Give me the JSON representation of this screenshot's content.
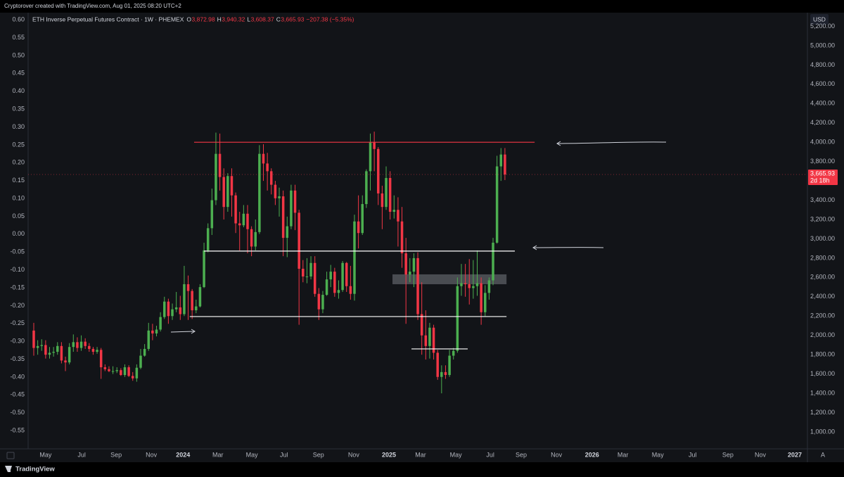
{
  "attribution": "Cryptorover created with TradingView.com, Aug 01, 2025 08:20 UTC+2",
  "footer": "TradingView",
  "chart_data": {
    "type": "candlestick",
    "title": "ETH Inverse Perpetual Futures Contract · 1W · PHEMEX",
    "ohlc_legend": [
      {
        "label": "O",
        "value": "3,872.98"
      },
      {
        "label": "H",
        "value": "3,940.32"
      },
      {
        "label": "L",
        "value": "3,608.37"
      },
      {
        "label": "C",
        "value": "3,665.93"
      }
    ],
    "change": "−207.38 (−5.35%)",
    "currency": "USD",
    "scale_mode": "A",
    "price_tag": {
      "price": "3,665.93",
      "countdown": "2d 18h"
    },
    "up_color": "#4caf50",
    "down_color": "#f23645",
    "x": [
      0,
      1,
      2,
      3,
      4,
      5,
      6,
      7,
      8,
      9,
      10,
      11,
      12,
      13,
      14,
      15,
      16,
      17,
      18,
      19,
      20,
      21,
      22,
      23,
      24,
      25,
      26,
      27,
      28,
      29,
      30,
      31,
      32,
      33,
      34,
      35,
      36,
      37,
      38,
      39,
      40,
      41,
      42,
      43,
      44,
      45,
      46,
      47,
      48,
      49,
      50,
      51,
      52,
      53,
      54,
      55,
      56,
      57,
      58,
      59,
      60,
      61,
      62,
      63,
      64,
      65,
      66,
      67,
      68,
      69,
      70,
      71,
      72,
      73,
      74,
      75,
      76,
      77,
      78,
      79,
      80,
      81,
      82,
      83,
      84,
      85,
      86,
      87,
      88,
      89,
      90,
      91,
      92,
      93,
      94,
      95,
      96,
      97,
      98,
      99,
      100,
      101,
      102,
      103,
      104,
      105,
      106,
      107,
      108,
      109,
      110,
      111,
      112,
      113,
      114,
      115,
      116,
      117,
      118,
      119
    ],
    "open": [
      2050,
      1870,
      1890,
      1900,
      1800,
      1820,
      1830,
      1890,
      1740,
      1720,
      1880,
      1930,
      1870,
      1935,
      1890,
      1860,
      1830,
      1850,
      1670,
      1650,
      1630,
      1630,
      1640,
      1590,
      1670,
      1580,
      1555,
      1665,
      1790,
      1860,
      2050,
      2020,
      2060,
      2190,
      2350,
      2200,
      2270,
      2290,
      2220,
      2530,
      2460,
      2260,
      2300,
      2500,
      2880,
      3110,
      3400,
      3880,
      3640,
      3330,
      3650,
      3450,
      3160,
      3140,
      3260,
      3100,
      2920,
      3070,
      3880,
      3780,
      3700,
      3560,
      3420,
      3440,
      3010,
      3130,
      3500,
      3270,
      2690,
      2610,
      2610,
      2750,
      2430,
      2270,
      2420,
      2580,
      2660,
      2440,
      2470,
      2750,
      2510,
      2430,
      3180,
      3060,
      3360,
      3700,
      4000,
      3930,
      3470,
      3330,
      3630,
      3280,
      3300,
      3180,
      2850,
      2630,
      2660,
      2800,
      2220,
      2000,
      1890,
      2080,
      1820,
      1570,
      1620,
      1590,
      1790,
      1840,
      2510,
      2540,
      2530,
      2490,
      2510,
      2540,
      2240,
      2440,
      2570,
      2960,
      3750,
      3872.98
    ],
    "high": [
      2130,
      1950,
      1960,
      1950,
      1880,
      1880,
      1930,
      1930,
      1780,
      1920,
      2010,
      1980,
      2000,
      1970,
      1920,
      1880,
      1880,
      1870,
      1700,
      1680,
      1680,
      1670,
      1660,
      1700,
      1690,
      1620,
      1700,
      1860,
      1910,
      2130,
      2120,
      2100,
      2240,
      2400,
      2380,
      2330,
      2450,
      2410,
      2720,
      2620,
      2480,
      2370,
      2530,
      2960,
      3160,
      3520,
      4100,
      4090,
      3730,
      3680,
      3730,
      3480,
      3280,
      3350,
      3350,
      3130,
      3200,
      3970,
      3980,
      3890,
      3730,
      3600,
      3530,
      3500,
      3230,
      3560,
      3560,
      3300,
      2780,
      2800,
      2820,
      2820,
      2490,
      2460,
      2660,
      2730,
      2700,
      2570,
      2770,
      2760,
      2720,
      3250,
      3450,
      3450,
      3720,
      4090,
      4110,
      3950,
      3550,
      3750,
      3700,
      3450,
      3430,
      3330,
      3010,
      2800,
      2850,
      2860,
      2550,
      2260,
      2130,
      2110,
      1850,
      1690,
      1690,
      1850,
      1870,
      2600,
      2740,
      2740,
      2790,
      2780,
      2880,
      2600,
      2520,
      2600,
      3010,
      3860,
      3940,
      3940.32
    ],
    "low": [
      1790,
      1800,
      1840,
      1760,
      1760,
      1780,
      1800,
      1710,
      1630,
      1700,
      1830,
      1830,
      1840,
      1860,
      1830,
      1800,
      1810,
      1550,
      1630,
      1620,
      1600,
      1610,
      1580,
      1570,
      1570,
      1530,
      1520,
      1650,
      1780,
      1840,
      1950,
      1990,
      2040,
      2170,
      2120,
      2160,
      2240,
      2160,
      2200,
      2160,
      2170,
      2230,
      2290,
      2490,
      2860,
      3040,
      3350,
      3500,
      3200,
      3280,
      3230,
      3060,
      2880,
      3120,
      2850,
      2820,
      2880,
      3050,
      3600,
      3500,
      3460,
      3350,
      3230,
      2820,
      2810,
      3100,
      3090,
      2110,
      2550,
      2540,
      2580,
      2400,
      2160,
      2230,
      2410,
      2500,
      2400,
      2380,
      2450,
      2450,
      2370,
      2360,
      2900,
      3040,
      3320,
      3500,
      3700,
      3350,
      3100,
      3300,
      3200,
      3210,
      2920,
      2700,
      2120,
      2550,
      2500,
      2160,
      1800,
      1750,
      1760,
      1750,
      1540,
      1400,
      1550,
      1570,
      1750,
      1820,
      2410,
      2400,
      2320,
      2380,
      2410,
      2110,
      2200,
      2370,
      2520,
      2950,
      3600,
      3608.37
    ],
    "close": [
      1870,
      1890,
      1900,
      1800,
      1820,
      1830,
      1890,
      1740,
      1720,
      1880,
      1930,
      1870,
      1935,
      1890,
      1860,
      1830,
      1850,
      1670,
      1650,
      1630,
      1630,
      1640,
      1590,
      1670,
      1580,
      1555,
      1665,
      1790,
      1860,
      2050,
      2020,
      2060,
      2190,
      2350,
      2200,
      2270,
      2290,
      2220,
      2530,
      2460,
      2260,
      2300,
      2500,
      2880,
      3110,
      3400,
      3880,
      3640,
      3330,
      3650,
      3450,
      3160,
      3140,
      3260,
      3100,
      2920,
      3070,
      3880,
      3780,
      3700,
      3560,
      3420,
      3440,
      3010,
      3130,
      3500,
      3270,
      2690,
      2610,
      2610,
      2750,
      2430,
      2270,
      2420,
      2580,
      2660,
      2440,
      2470,
      2750,
      2510,
      2430,
      3180,
      3060,
      3360,
      3700,
      4000,
      3930,
      3470,
      3330,
      3630,
      3280,
      3300,
      3180,
      2850,
      2630,
      2660,
      2800,
      2220,
      2000,
      1890,
      2080,
      1820,
      1570,
      1620,
      1590,
      1790,
      1840,
      2510,
      2540,
      2530,
      2490,
      2510,
      2540,
      2240,
      2440,
      2570,
      2960,
      3750,
      3872.98,
      3665.93
    ],
    "xlim": [
      -1.42,
      195.4
    ],
    "xticks": [
      {
        "value": 3.0,
        "label": "May"
      },
      {
        "value": 12.1,
        "label": "Jul"
      },
      {
        "value": 20.8,
        "label": "Sep"
      },
      {
        "value": 29.7,
        "label": "Nov"
      },
      {
        "value": 37.7,
        "label": "2024"
      },
      {
        "value": 46.5,
        "label": "Mar"
      },
      {
        "value": 55.1,
        "label": "May"
      },
      {
        "value": 63.2,
        "label": "Jul"
      },
      {
        "value": 71.9,
        "label": "Sep"
      },
      {
        "value": 80.8,
        "label": "Nov"
      },
      {
        "value": 89.7,
        "label": "2025"
      },
      {
        "value": 97.7,
        "label": "Mar"
      },
      {
        "value": 106.6,
        "label": "May"
      },
      {
        "value": 115.3,
        "label": "Jul"
      },
      {
        "value": 123.1,
        "label": "Sep"
      },
      {
        "value": 132.0,
        "label": "Nov"
      },
      {
        "value": 141.0,
        "label": "2026"
      },
      {
        "value": 148.8,
        "label": "Mar"
      },
      {
        "value": 157.6,
        "label": "May"
      },
      {
        "value": 166.4,
        "label": "Jul"
      },
      {
        "value": 175.3,
        "label": "Sep"
      },
      {
        "value": 183.5,
        "label": "Nov"
      },
      {
        "value": 192.2,
        "label": "2027"
      }
    ],
    "ylim": [
      825,
      5342
    ],
    "yticks": [
      {
        "value": 1000,
        "label": "1,000.00"
      },
      {
        "value": 1200,
        "label": "1,200.00"
      },
      {
        "value": 1400,
        "label": "1,400.00"
      },
      {
        "value": 1600,
        "label": "1,600.00"
      },
      {
        "value": 1800,
        "label": "1,800.00"
      },
      {
        "value": 2000,
        "label": "2,000.00"
      },
      {
        "value": 2200,
        "label": "2,200.00"
      },
      {
        "value": 2400,
        "label": "2,400.00"
      },
      {
        "value": 2600,
        "label": "2,600.00"
      },
      {
        "value": 2800,
        "label": "2,800.00"
      },
      {
        "value": 3000,
        "label": "3,000.00"
      },
      {
        "value": 3200,
        "label": "3,200.00"
      },
      {
        "value": 3400,
        "label": "3,400.00"
      },
      {
        "value": 3600,
        "label": "3,600.00"
      },
      {
        "value": 3800,
        "label": "3,800.00"
      },
      {
        "value": 4000,
        "label": "4,000.00"
      },
      {
        "value": 4200,
        "label": "4,200.00"
      },
      {
        "value": 4400,
        "label": "4,400.00"
      },
      {
        "value": 4600,
        "label": "4,600.00"
      },
      {
        "value": 4800,
        "label": "4,800.00"
      },
      {
        "value": 5000,
        "label": "5,000.00"
      },
      {
        "value": 5200,
        "label": "5,200.00"
      }
    ],
    "y2lim": [
      -0.601,
      0.62
    ],
    "y2ticks": [
      {
        "value": 0.6,
        "label": "0.60"
      },
      0.55,
      {
        "value": 0.5,
        "label": "0.50"
      },
      0.45,
      {
        "value": 0.4,
        "label": "0.40"
      },
      0.35,
      {
        "value": 0.3,
        "label": "0.30"
      },
      0.25,
      {
        "value": 0.2,
        "label": "0.20"
      },
      0.15,
      {
        "value": 0.1,
        "label": "0.10"
      },
      0.05,
      {
        "value": 0,
        "label": "0.00"
      },
      -0.05,
      {
        "value": -0.1,
        "label": "-0.10"
      },
      -0.15,
      {
        "value": -0.2,
        "label": "-0.20"
      },
      -0.25,
      {
        "value": -0.3,
        "label": "-0.30"
      },
      -0.35,
      {
        "value": -0.4,
        "label": "-0.40"
      },
      -0.45,
      {
        "value": -0.5,
        "label": "-0.50"
      },
      -0.55
    ],
    "grid": false,
    "levels": [
      {
        "value": 4000,
        "color": "#f23645",
        "x": [
          40.5,
          126.5
        ]
      },
      {
        "value": 2873,
        "color": "#ffffff",
        "x": [
          43,
          121.5
        ]
      },
      {
        "value": 2195,
        "color": "#ffffff",
        "x": [
          39.4,
          119.4
        ]
      },
      {
        "value": 1860,
        "color": "#ffffff",
        "x": [
          95.4,
          109.6
        ]
      }
    ],
    "zones": [
      {
        "range": [
          2530,
          2632
        ],
        "color": "#b2b5be",
        "x": [
          90.6,
          119.4
        ]
      }
    ]
  }
}
